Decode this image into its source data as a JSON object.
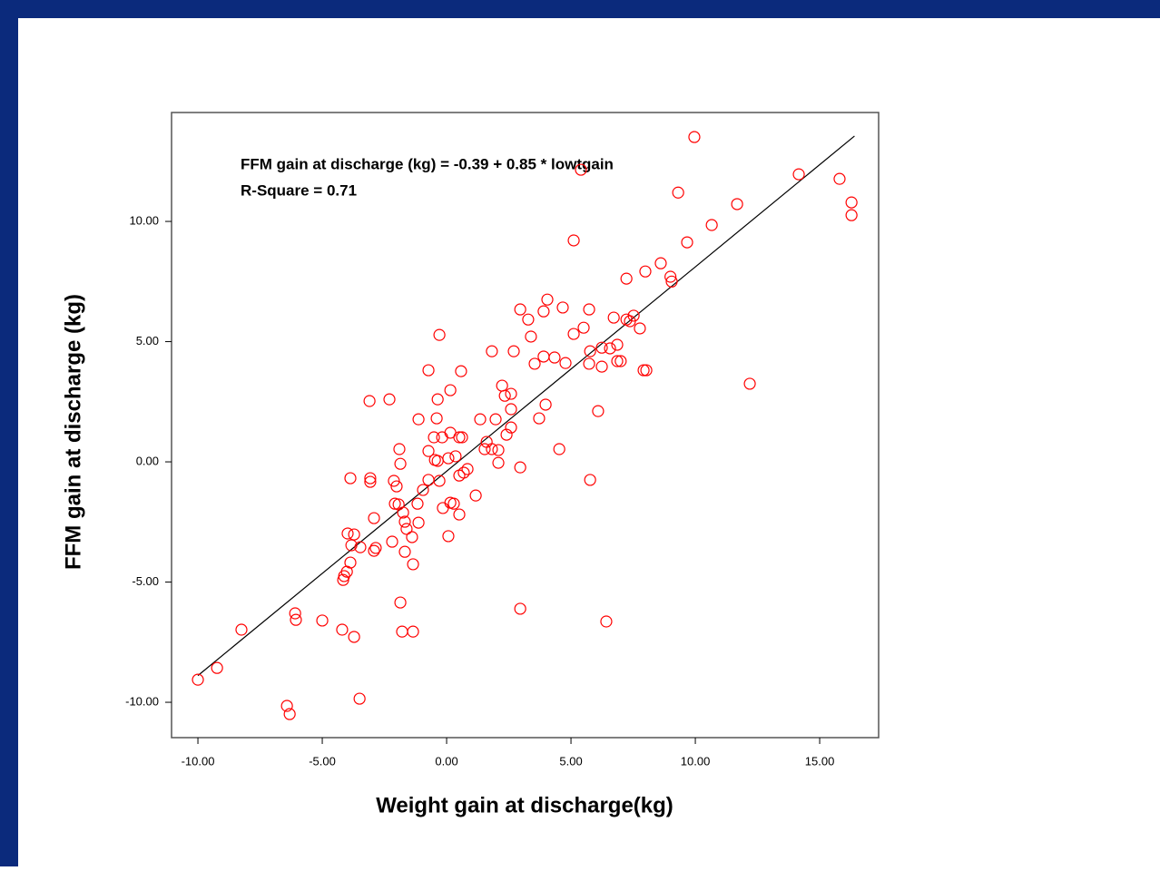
{
  "chart_data": {
    "type": "scatter",
    "x_label": "Weight gain at discharge(kg)",
    "y_label": "FFM gain at discharge (kg)",
    "annotations": [
      "FFM gain at discharge (kg) = -0.39 + 0.85 * lowtgain",
      "R-Square = 0.71"
    ],
    "color": "#ff0000",
    "xlim": [
      -11.06,
      17.37
    ],
    "ylim": [
      -11.47,
      14.53
    ],
    "xticks": [
      {
        "value": -10,
        "label": "-10.00"
      },
      {
        "value": -5,
        "label": "-5.00"
      },
      {
        "value": 0,
        "label": "0.00"
      },
      {
        "value": 5,
        "label": "5.00"
      },
      {
        "value": 10,
        "label": "10.00"
      },
      {
        "value": 15,
        "label": "15.00"
      }
    ],
    "yticks": [
      {
        "value": -10,
        "label": "-10.00"
      },
      {
        "value": -5,
        "label": "-5.00"
      },
      {
        "value": 0,
        "label": "0.00"
      },
      {
        "value": 5,
        "label": "5.00"
      },
      {
        "value": 10,
        "label": "10.00"
      }
    ],
    "fit_line": {
      "x": [
        -10.0,
        16.4
      ],
      "values": [
        -8.89,
        13.55
      ],
      "color": "#000000"
    },
    "x": [
      9.96,
      5.4,
      14.16,
      15.8,
      16.28,
      16.28,
      9.31,
      11.68,
      10.66,
      9.67,
      5.11,
      8.61,
      7.99,
      7.23,
      9.0,
      9.05,
      4.05,
      2.96,
      3.9,
      4.67,
      5.73,
      3.28,
      6.72,
      7.23,
      7.52,
      7.37,
      5.51,
      5.11,
      3.39,
      -0.29,
      7.77,
      6.86,
      6.57,
      6.24,
      5.77,
      1.82,
      2.7,
      3.9,
      4.34,
      3.54,
      4.78,
      5.73,
      6.24,
      6.86,
      7.0,
      7.92,
      8.03,
      -0.73,
      0.58,
      12.19,
      0.15,
      2.23,
      2.59,
      2.34,
      -3.1,
      -2.3,
      -0.36,
      3.98,
      2.59,
      6.09,
      3.72,
      1.35,
      1.97,
      -1.13,
      -0.4,
      2.59,
      2.41,
      0.15,
      -0.51,
      -0.18,
      0.51,
      0.62,
      1.61,
      1.53,
      1.82,
      2.08,
      -0.73,
      -1.9,
      4.53,
      0.36,
      0.07,
      -0.47,
      -0.36,
      -1.86,
      2.08,
      2.96,
      0.84,
      0.69,
      0.51,
      -3.87,
      -3.07,
      -3.07,
      -0.73,
      -0.29,
      5.77,
      -2.12,
      -2.01,
      -0.95,
      1.17,
      -1.17,
      -2.08,
      -1.93,
      0.15,
      0.29,
      -0.15,
      -1.75,
      0.51,
      -2.92,
      -1.68,
      -1.13,
      -1.61,
      -3.98,
      -3.72,
      -1.39,
      0.07,
      -2.19,
      -3.83,
      -3.47,
      -2.85,
      -2.92,
      -1.68,
      -3.87,
      -1.35,
      -4.01,
      -4.12,
      -4.16,
      -1.86,
      2.96,
      -6.09,
      -6.06,
      -5.0,
      6.42,
      -8.25,
      -4.2,
      -1.79,
      -1.35,
      -3.72,
      -9.23,
      -10.0,
      -3.5,
      -6.42,
      -6.31
    ],
    "values": [
      13.51,
      12.15,
      11.96,
      11.77,
      10.79,
      10.26,
      11.2,
      10.72,
      9.85,
      9.13,
      9.21,
      8.26,
      7.92,
      7.62,
      7.7,
      7.5,
      6.75,
      6.34,
      6.26,
      6.42,
      6.34,
      5.92,
      6.0,
      5.92,
      6.08,
      5.85,
      5.58,
      5.32,
      5.21,
      5.28,
      5.55,
      4.87,
      4.72,
      4.75,
      4.6,
      4.6,
      4.6,
      4.38,
      4.34,
      4.08,
      4.11,
      4.08,
      3.96,
      4.19,
      4.19,
      3.81,
      3.81,
      3.81,
      3.77,
      3.25,
      2.98,
      3.17,
      2.83,
      2.75,
      2.53,
      2.6,
      2.6,
      2.38,
      2.19,
      2.11,
      1.81,
      1.77,
      1.77,
      1.77,
      1.81,
      1.43,
      1.13,
      1.21,
      1.02,
      1.02,
      1.02,
      1.02,
      0.83,
      0.53,
      0.53,
      0.49,
      0.45,
      0.53,
      0.53,
      0.23,
      0.15,
      0.08,
      0.04,
      -0.08,
      -0.04,
      -0.23,
      -0.3,
      -0.45,
      -0.57,
      -0.68,
      -0.68,
      -0.83,
      -0.75,
      -0.79,
      -0.75,
      -0.79,
      -1.02,
      -1.17,
      -1.4,
      -1.74,
      -1.74,
      -1.77,
      -1.7,
      -1.74,
      -1.92,
      -2.11,
      -2.19,
      -2.34,
      -2.49,
      -2.53,
      -2.79,
      -2.98,
      -3.02,
      -3.13,
      -3.09,
      -3.32,
      -3.47,
      -3.55,
      -3.58,
      -3.7,
      -3.74,
      -4.19,
      -4.26,
      -4.57,
      -4.75,
      -4.91,
      -5.85,
      -6.11,
      -6.3,
      -6.57,
      -6.6,
      -6.64,
      -6.98,
      -6.98,
      -7.06,
      -7.06,
      -7.28,
      -8.57,
      -9.06,
      -9.85,
      -10.15,
      -10.49
    ]
  }
}
